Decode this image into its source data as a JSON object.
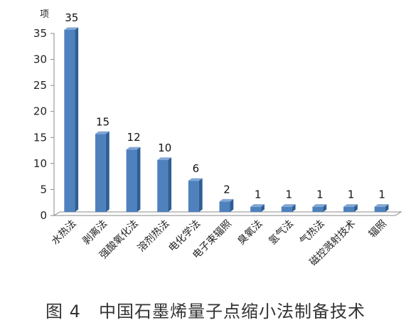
{
  "figure": {
    "caption": "图 4　中国石墨烯量子点缩小法制备技术"
  },
  "chart_data": {
    "type": "bar",
    "ylabel": "项",
    "xlabel": "",
    "ylim": [
      0,
      35
    ],
    "yticks": [
      0,
      5,
      10,
      15,
      20,
      25,
      30,
      35
    ],
    "grid": false,
    "style": "3d",
    "categories": [
      "水热法",
      "剥离法",
      "强酸氧化法",
      "溶剂热法",
      "电化学法",
      "电子束辐照",
      "臭氧法",
      "氢气法",
      "气热法",
      "磁控溅射技术",
      "辐照"
    ],
    "values": [
      35,
      15,
      12,
      10,
      6,
      2,
      1,
      1,
      1,
      1,
      1
    ],
    "data_labels": [
      "35",
      "15",
      "12",
      "10",
      "6",
      "2",
      "1",
      "1",
      "1",
      "1",
      "1"
    ],
    "colors": {
      "bar_front": "#4F81BD",
      "bar_side": "#2E5E95",
      "bar_top": "#7FA6D6",
      "axis": "#888888"
    }
  }
}
